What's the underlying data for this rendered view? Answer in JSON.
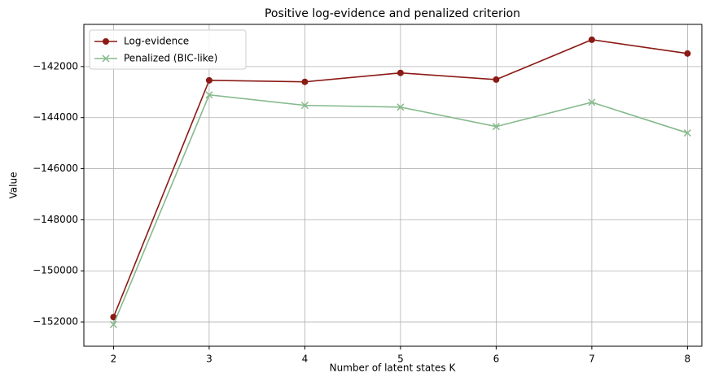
{
  "chart_data": {
    "type": "line",
    "title": "Positive log-evidence and penalized criterion",
    "xlabel": "Number of latent states K",
    "ylabel": "Value",
    "x": [
      2,
      3,
      4,
      5,
      6,
      7,
      8
    ],
    "series": [
      {
        "name": "Log-evidence",
        "color": "#8b1a15",
        "marker": "o",
        "values": [
          -151810,
          -142540,
          -142600,
          -142250,
          -142510,
          -140950,
          -141490
        ]
      },
      {
        "name": "Penalized (BIC-like)",
        "color": "#86ba8c",
        "marker": "x",
        "values": [
          -152100,
          -143110,
          -143520,
          -143590,
          -144350,
          -143400,
          -144600
        ]
      }
    ],
    "xlim": [
      1.69,
      8.15
    ],
    "ylim": [
      -152952,
      -140349
    ],
    "xticks": [
      2,
      3,
      4,
      5,
      6,
      7,
      8
    ],
    "yticks": [
      {
        "value": -152000,
        "label": "−152000"
      },
      {
        "value": -150000,
        "label": "−150000"
      },
      {
        "value": -148000,
        "label": "−148000"
      },
      {
        "value": -146000,
        "label": "−146000"
      },
      {
        "value": -144000,
        "label": "−144000"
      },
      {
        "value": -142000,
        "label": "−142000"
      }
    ],
    "grid": true,
    "legend": "upper-left"
  }
}
